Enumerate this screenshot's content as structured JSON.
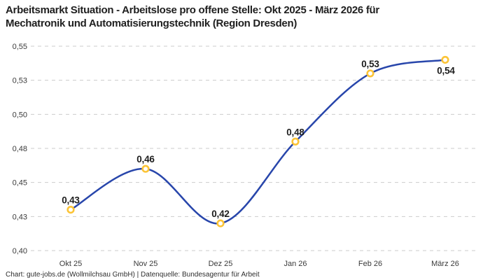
{
  "header": {
    "title_lines": [
      "Arbeitsmarkt Situation - Arbeitslose pro offene Stelle: Okt 2025 - März 2026 für",
      "Mechatronik und Automatisierungstechnik (Region Dresden)"
    ]
  },
  "footer": {
    "credit": "Chart: gute-jobs.de (Wollmilchsau GmbH) | Datenquelle: Bundesagentur für Arbeit"
  },
  "chart_data": {
    "type": "line",
    "title": "Arbeitsmarkt Situation - Arbeitslose pro offene Stelle: Okt 2025 - März 2026 für Mechatronik und Automatisierungstechnik (Region Dresden)",
    "categories": [
      "Okt 25",
      "Nov 25",
      "Dez 25",
      "Jan 26",
      "Feb 26",
      "März 26"
    ],
    "series": [
      {
        "name": "Arbeitslose pro offene Stelle",
        "values": [
          0.43,
          0.46,
          0.42,
          0.48,
          0.53,
          0.54
        ],
        "point_labels": [
          "0,43",
          "0,46",
          "0,42",
          "0,48",
          "0,53",
          "0,54"
        ]
      }
    ],
    "y_ticks": [
      {
        "v": 0.55,
        "label": "0,55"
      },
      {
        "v": 0.525,
        "label": "0,53"
      },
      {
        "v": 0.5,
        "label": "0,50"
      },
      {
        "v": 0.475,
        "label": "0,48"
      },
      {
        "v": 0.45,
        "label": "0,45"
      },
      {
        "v": 0.425,
        "label": "0,43"
      },
      {
        "v": 0.4,
        "label": "0,40"
      }
    ],
    "ylim": [
      0.4,
      0.55
    ],
    "xlabel": "",
    "ylabel": "",
    "grid": "horizontal-dashed",
    "legend_position": "none",
    "last_point_label_below": true,
    "colors": {
      "line": "#2846ab",
      "marker_ring": "#fcc436",
      "marker_fill": "#ffffff",
      "grid": "#cbcbcb",
      "axis_text": "#3a3a3a",
      "point_label": "#1d1d1d",
      "title_text": "#1f1f1f"
    }
  }
}
